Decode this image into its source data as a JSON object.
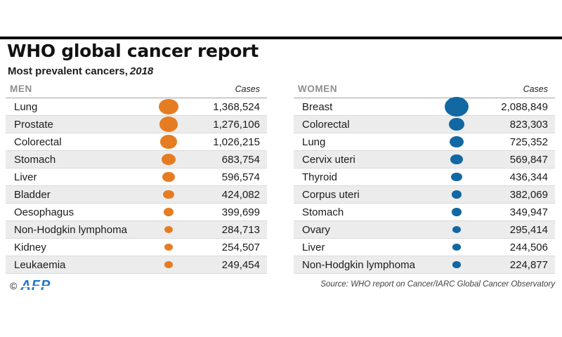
{
  "header": {
    "title": "WHO global cancer report",
    "subtitle": "Most prevalent cancers,",
    "subtitle_year": "2018"
  },
  "chart_data": {
    "type": "table",
    "title": "WHO global cancer report",
    "subtitle": "Most prevalent cancers, 2018",
    "value_header": "Cases",
    "encoding": "bubble size proportional to square root of case count",
    "groups": [
      {
        "label": "MEN",
        "bubble_color": "#e67c22",
        "rows": [
          {
            "name": "Lung",
            "cases": 1368524,
            "display": "1,368,524"
          },
          {
            "name": "Prostate",
            "cases": 1276106,
            "display": "1,276,106"
          },
          {
            "name": "Colorectal",
            "cases": 1026215,
            "display": "1,026,215"
          },
          {
            "name": "Stomach",
            "cases": 683754,
            "display": "683,754"
          },
          {
            "name": "Liver",
            "cases": 596574,
            "display": "596,574"
          },
          {
            "name": "Bladder",
            "cases": 424082,
            "display": "424,082"
          },
          {
            "name": "Oesophagus",
            "cases": 399699,
            "display": "399,699"
          },
          {
            "name": "Non-Hodgkin lymphoma",
            "cases": 284713,
            "display": "284,713"
          },
          {
            "name": "Kidney",
            "cases": 254507,
            "display": "254,507"
          },
          {
            "name": "Leukaemia",
            "cases": 249454,
            "display": "249,454"
          }
        ]
      },
      {
        "label": "WOMEN",
        "bubble_color": "#1268a2",
        "rows": [
          {
            "name": "Breast",
            "cases": 2088849,
            "display": "2,088,849"
          },
          {
            "name": "Colorectal",
            "cases": 823303,
            "display": "823,303"
          },
          {
            "name": "Lung",
            "cases": 725352,
            "display": "725,352"
          },
          {
            "name": "Cervix uteri",
            "cases": 569847,
            "display": "569,847"
          },
          {
            "name": "Thyroid",
            "cases": 436344,
            "display": "436,344"
          },
          {
            "name": "Corpus uteri",
            "cases": 382069,
            "display": "382,069"
          },
          {
            "name": "Stomach",
            "cases": 349947,
            "display": "349,947"
          },
          {
            "name": "Ovary",
            "cases": 295414,
            "display": "295,414"
          },
          {
            "name": "Liver",
            "cases": 244506,
            "display": "244,506"
          },
          {
            "name": "Non-Hodgkin lymphoma",
            "cases": 224877,
            "display": "224,877"
          }
        ]
      }
    ]
  },
  "footer": {
    "copyright": "©",
    "brand": "AFP",
    "source": "Source: WHO report on Cancer/IARC Global Cancer Observatory"
  },
  "colors": {
    "men_accent": "#e67c22",
    "women_accent": "#1268a2",
    "alt_row": "#ececec",
    "top_rule": "#0d0d0d",
    "brand_blue": "#2277c8"
  }
}
